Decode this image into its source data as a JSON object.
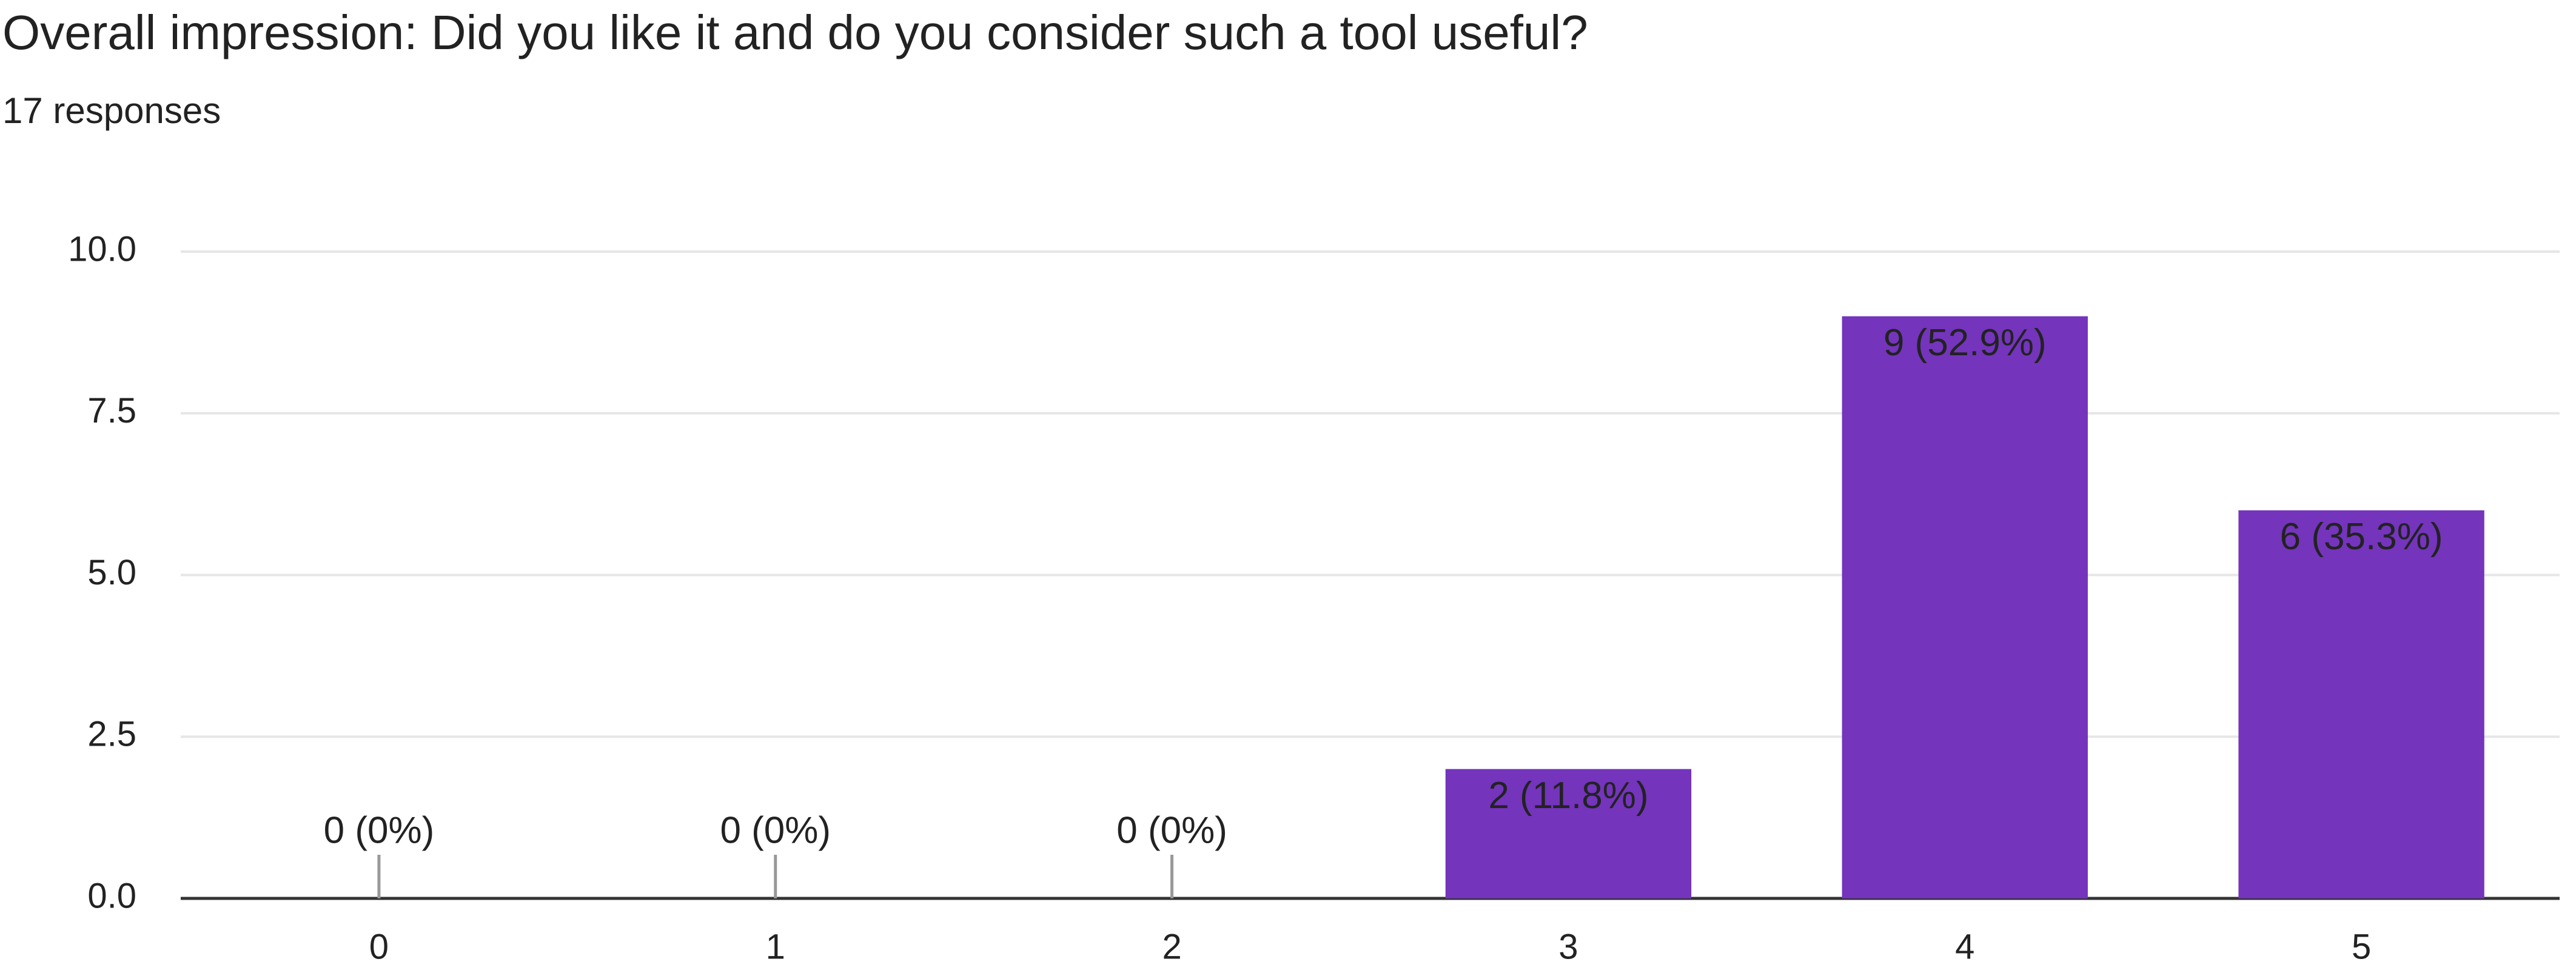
{
  "chart_data": {
    "type": "bar",
    "title": "Overall impression: Did you like it and do you consider such a tool useful?",
    "subtitle": "17 responses",
    "categories": [
      "0",
      "1",
      "2",
      "3",
      "4",
      "5"
    ],
    "values": [
      0,
      0,
      0,
      2,
      9,
      6
    ],
    "value_labels": [
      "0 (0%)",
      "0 (0%)",
      "0 (0%)",
      "2 (11.8%)",
      "9 (52.9%)",
      "6 (35.3%)"
    ],
    "color": "#7434bc",
    "ylim": [
      0,
      10
    ],
    "yticks": [
      {
        "value": 0,
        "label": "0.0"
      },
      {
        "value": 2.5,
        "label": "2.5"
      },
      {
        "value": 5,
        "label": "5.0"
      },
      {
        "value": 7.5,
        "label": "7.5"
      },
      {
        "value": 10,
        "label": "10.0"
      }
    ],
    "grid": true
  }
}
